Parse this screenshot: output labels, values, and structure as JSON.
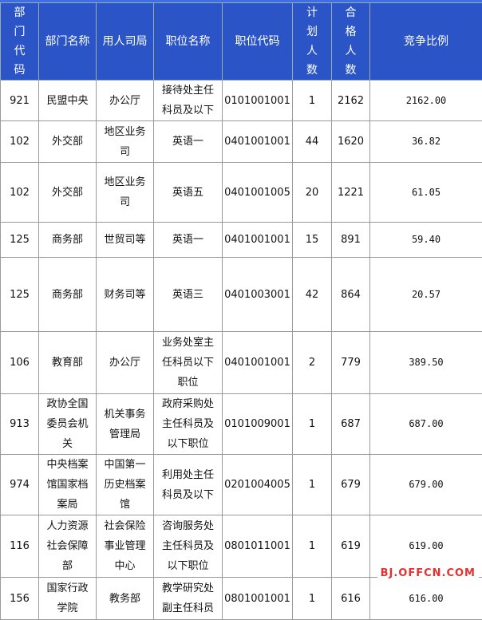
{
  "headers": [
    "部门代码",
    "部门名称",
    "用人司局",
    "职位名称",
    "职位代码",
    "计划人数",
    "合格人数",
    "竞争比例"
  ],
  "rows": [
    [
      "921",
      "民盟中央",
      "办公厅",
      "接待处主任科员及以下",
      "0101001001",
      "1",
      "2162",
      "2162.00"
    ],
    [
      "102",
      "外交部",
      "地区业务司",
      "英语一",
      "0401001001",
      "44",
      "1620",
      "36.82"
    ],
    [
      "102",
      "外交部",
      "地区业务司",
      "英语五",
      "0401001005",
      "20",
      "1221",
      "61.05"
    ],
    [
      "125",
      "商务部",
      "世贸司等",
      "英语一",
      "0401001001",
      "15",
      "891",
      "59.40"
    ],
    [
      "125",
      "商务部",
      "财务司等",
      "英语三",
      "0401003001",
      "42",
      "864",
      "20.57"
    ],
    [
      "106",
      "教育部",
      "办公厅",
      "业务处室主任科员以下职位",
      "0401001001",
      "2",
      "779",
      "389.50"
    ],
    [
      "913",
      "政协全国委员会机关",
      "机关事务管理局",
      "政府采购处主任科员及以下职位",
      "0101009001",
      "1",
      "687",
      "687.00"
    ],
    [
      "974",
      "中央档案馆国家档案局",
      "中国第一历史档案馆",
      "利用处主任科员及以下",
      "0201004005",
      "1",
      "679",
      "679.00"
    ],
    [
      "116",
      "人力资源社会保障部",
      "社会保险事业管理中心",
      "咨询服务处主任科员及以下职位",
      "0801011001",
      "1",
      "619",
      "619.00"
    ],
    [
      "156",
      "国家行政学院",
      "教务部",
      "教学研究处副主任科员",
      "0801001001",
      "1",
      "616",
      "616.00"
    ]
  ],
  "watermark": "BJ.OFFCN.COM",
  "colors": {
    "header": "#2b54c6",
    "watermark": "#e53030"
  }
}
